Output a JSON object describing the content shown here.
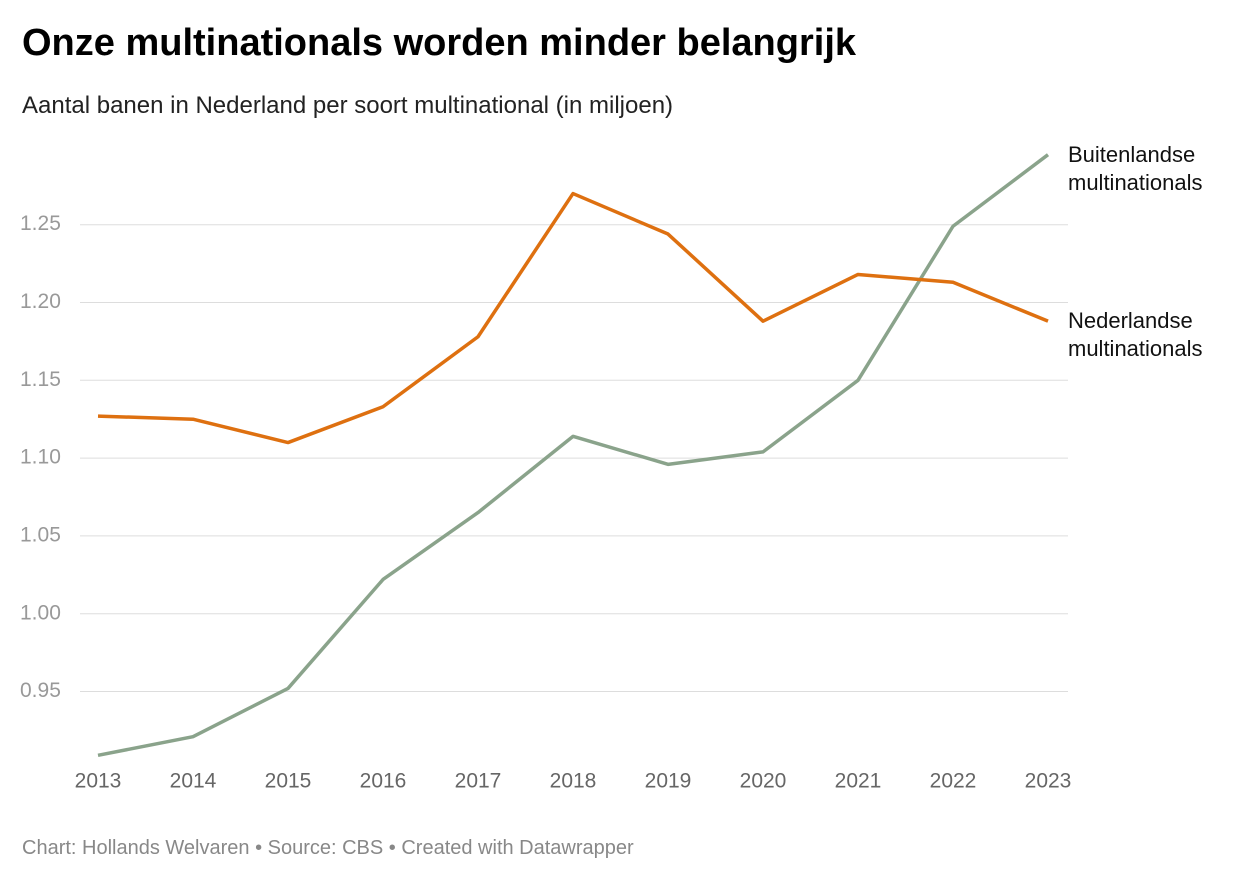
{
  "chart_data": {
    "type": "line",
    "title": "Onze multinationals worden minder belangrijk",
    "subtitle": "Aantal banen in Nederland per soort multinational (in miljoen)",
    "footer": "Chart: Hollands Welvaren • Source: CBS • Created with Datawrapper",
    "categories": [
      "2013",
      "2014",
      "2015",
      "2016",
      "2017",
      "2018",
      "2019",
      "2020",
      "2021",
      "2022",
      "2023"
    ],
    "series": [
      {
        "name": "Buitenlandse multinationals",
        "color": "#8aa38b",
        "values": [
          0.909,
          0.921,
          0.952,
          1.022,
          1.065,
          1.114,
          1.096,
          1.104,
          1.15,
          1.249,
          1.295
        ]
      },
      {
        "name": "Nederlandse multinationals",
        "color": "#de7010",
        "values": [
          1.127,
          1.125,
          1.11,
          1.133,
          1.178,
          1.27,
          1.244,
          1.188,
          1.218,
          1.213,
          1.188
        ]
      }
    ],
    "ylim": [
      0.906,
      1.298
    ],
    "yticks": [
      0.95,
      {
        "value": 1.0,
        "label": "1.00"
      },
      1.05,
      {
        "value": 1.1,
        "label": "1.10"
      },
      1.15,
      {
        "value": 1.2,
        "label": "1.20"
      },
      1.25
    ],
    "grid": true
  }
}
